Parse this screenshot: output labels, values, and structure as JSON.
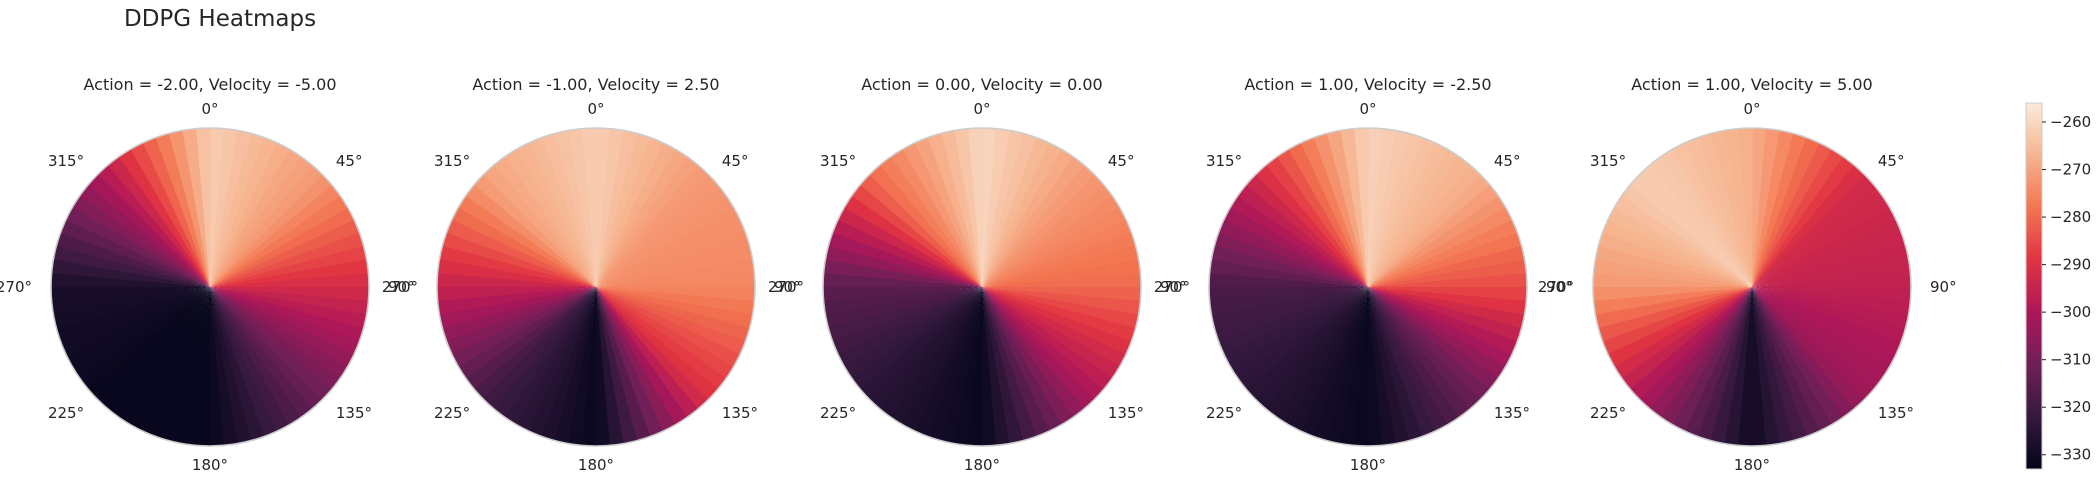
{
  "figure": {
    "title": "DDPG Heatmaps"
  },
  "colors": {
    "colormap": "rocket",
    "stops": [
      "#03051a",
      "#35193e",
      "#701f57",
      "#ad1759",
      "#e13342",
      "#f37651",
      "#f6b48f",
      "#faebdd"
    ],
    "circle_edge": "#cccccc",
    "colorbar_edge": "#cccccc"
  },
  "chart_data": [
    {
      "type": "heatmap",
      "projection": "polar",
      "title": "Action = -2.00, Velocity = -5.00",
      "theta_tick_labels": [
        "0°",
        "45°",
        "90°",
        "135°",
        "180°",
        "225°",
        "270°",
        "315°"
      ],
      "theta_deg": [
        0,
        45,
        90,
        135,
        180,
        225,
        270,
        315
      ],
      "value": [
        -262,
        -272,
        -292,
        -312,
        -332,
        -332,
        -328,
        -300
      ]
    },
    {
      "type": "heatmap",
      "projection": "polar",
      "title": "Action = -1.00, Velocity = 2.50",
      "theta_tick_labels": [
        "0°",
        "45°",
        "90°",
        "135°",
        "180°",
        "225°",
        "270°",
        "315°"
      ],
      "theta_deg": [
        0,
        45,
        90,
        135,
        180,
        225,
        270,
        315
      ],
      "value": [
        -262,
        -272,
        -275,
        -290,
        -332,
        -320,
        -295,
        -270
      ]
    },
    {
      "type": "heatmap",
      "projection": "polar",
      "title": "Action = 0.00, Velocity = 0.00",
      "theta_tick_labels": [
        "0°",
        "45°",
        "90°",
        "135°",
        "180°",
        "225°",
        "270°",
        "315°"
      ],
      "theta_deg": [
        0,
        45,
        90,
        135,
        180,
        225,
        270,
        315
      ],
      "value": [
        -260,
        -272,
        -280,
        -300,
        -332,
        -325,
        -315,
        -280
      ]
    },
    {
      "type": "heatmap",
      "projection": "polar",
      "title": "Action = 1.00, Velocity = -2.50",
      "theta_tick_labels": [
        "0°",
        "45°",
        "90°",
        "135°",
        "180°",
        "225°",
        "270°",
        "315°"
      ],
      "theta_deg": [
        0,
        45,
        90,
        135,
        180,
        225,
        270,
        315
      ],
      "value": [
        -261,
        -268,
        -285,
        -312,
        -332,
        -325,
        -318,
        -292
      ]
    },
    {
      "type": "heatmap",
      "projection": "polar",
      "title": "Action = 1.00, Velocity = 5.00",
      "theta_tick_labels": [
        "0°",
        "45°",
        "90°",
        "135°",
        "180°",
        "225°",
        "270°",
        "315°"
      ],
      "theta_deg": [
        0,
        45,
        90,
        135,
        180,
        225,
        270,
        315
      ],
      "value": [
        -268,
        -292,
        -296,
        -303,
        -330,
        -300,
        -272,
        -262
      ]
    }
  ],
  "colorbar": {
    "vmin": -333,
    "vmax": -256,
    "ticks": [
      -260,
      -270,
      -280,
      -290,
      -300,
      -310,
      -320,
      -330
    ],
    "tick_labels": [
      "−260",
      "−270",
      "−280",
      "−290",
      "−300",
      "−310",
      "−320",
      "−330"
    ]
  }
}
